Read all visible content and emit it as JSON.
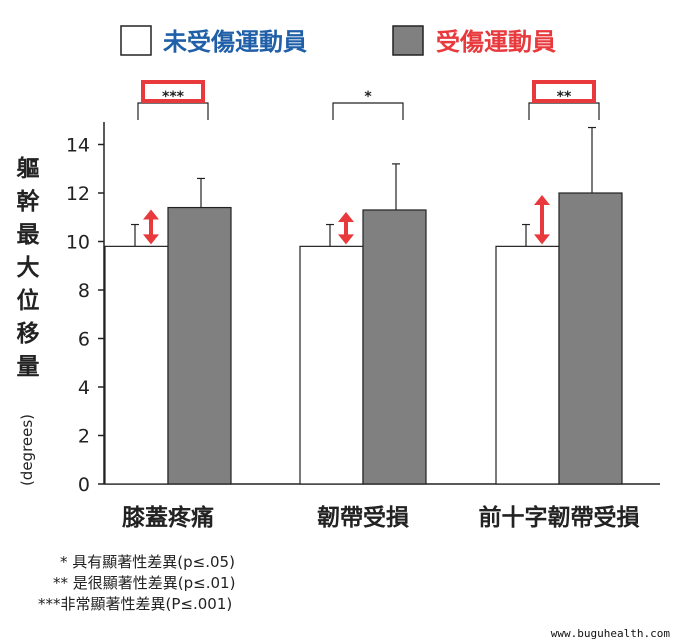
{
  "legend": {
    "uninjured_label": "未受傷運動員",
    "injured_label": "受傷運動員",
    "uninjured_color": "#1f5fa8",
    "injured_color": "#e8393c"
  },
  "y_axis": {
    "title_chars": [
      "軀",
      "幹",
      "最",
      "大",
      "位",
      "移",
      "量"
    ],
    "unit": "(degrees)"
  },
  "chart_data": {
    "type": "bar",
    "categories": [
      "膝蓋疼痛",
      "韌帶受損",
      "前十字韌帶受損"
    ],
    "series": [
      {
        "name": "未受傷運動員",
        "values": [
          9.8,
          9.8,
          9.8
        ],
        "error": [
          0.9,
          0.9,
          0.9
        ],
        "color": "#ffffff"
      },
      {
        "name": "受傷運動員",
        "values": [
          11.4,
          11.3,
          12.0
        ],
        "error": [
          1.2,
          1.9,
          2.7
        ],
        "color": "#808080"
      }
    ],
    "significance": [
      "***",
      "*",
      "**"
    ],
    "highlighted": [
      true,
      false,
      true
    ],
    "y_ticks": [
      0,
      2,
      4,
      6,
      8,
      10,
      12,
      14
    ],
    "ylim": [
      0,
      15
    ]
  },
  "footnotes": [
    "* 具有顯著性差異(p≤.05)",
    "** 是很顯著性差異(p≤.01)",
    "***非常顯著性差異(P≤.001)"
  ],
  "watermark": "www.buguhealth.com"
}
